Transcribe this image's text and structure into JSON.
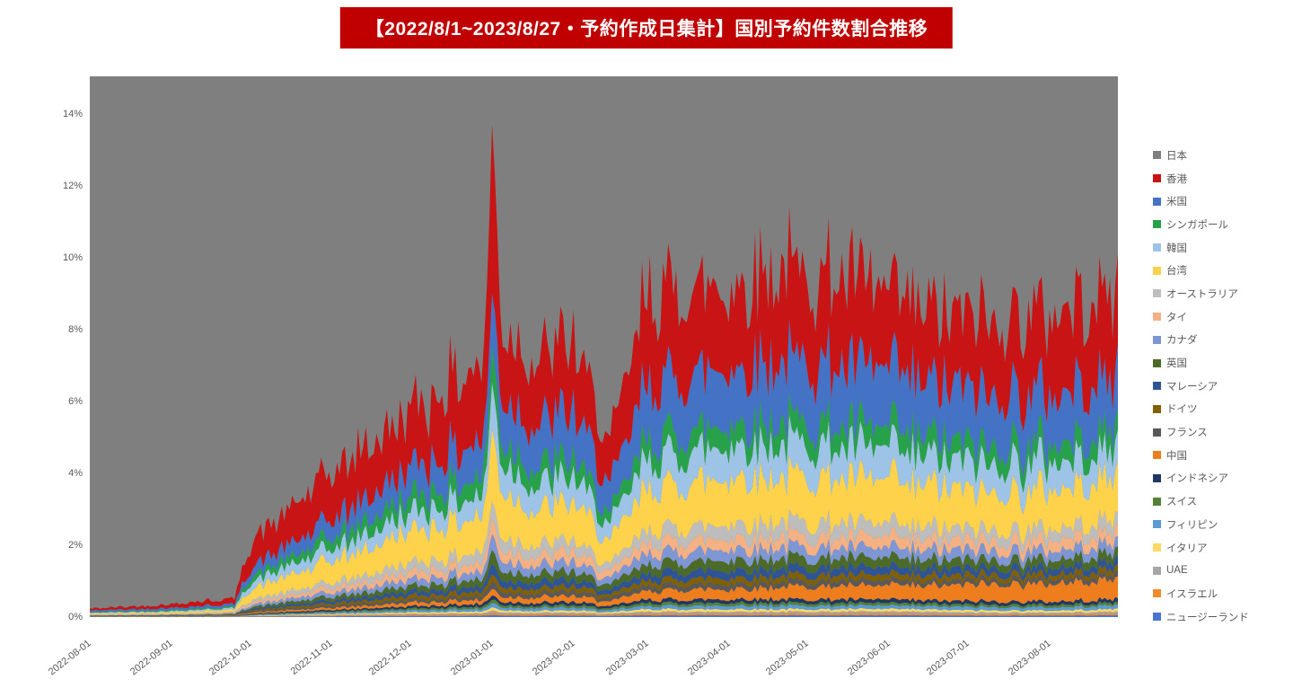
{
  "title": "【2022/8/1~2023/8/27・予約作成日集計】国別予約件数割合推移",
  "banner_color": "#c00000",
  "chart_data": {
    "type": "area",
    "stacked": true,
    "unit": "percent_share",
    "title": "【2022/8/1~2023/8/27・予約作成日集計】国別予約件数割合推移",
    "xlabel": "",
    "ylabel": "",
    "grid": false,
    "legend_position": "right",
    "x_range": [
      "2022-08-01",
      "2023-08-27"
    ],
    "ylim_percent": [
      0,
      15.05
    ],
    "y_tick_labels": [
      "0%",
      "2%",
      "4%",
      "6%",
      "8%",
      "10%",
      "12%",
      "14%"
    ],
    "y_tick_values": [
      0,
      2,
      4,
      6,
      8,
      10,
      12,
      14
    ],
    "x_ticks": [
      {
        "label": "2022-08-01",
        "day": 0
      },
      {
        "label": "2022-09-01",
        "day": 31
      },
      {
        "label": "2022-10-01",
        "day": 61
      },
      {
        "label": "2022-11-01",
        "day": 92
      },
      {
        "label": "2022-12-01",
        "day": 122
      },
      {
        "label": "2023-01-01",
        "day": 153
      },
      {
        "label": "2023-02-01",
        "day": 184
      },
      {
        "label": "2023-03-01",
        "day": 212
      },
      {
        "label": "2023-04-01",
        "day": 243
      },
      {
        "label": "2023-05-01",
        "day": 273
      },
      {
        "label": "2023-06-01",
        "day": 304
      },
      {
        "label": "2023-07-01",
        "day": 334
      },
      {
        "label": "2023-08-01",
        "day": 365
      }
    ],
    "total_days": 391,
    "background_series_note": "日本 is the remainder share and fills the whole plot background (gray) above the stacked foreign-country areas; y-axis is clipped at ~15%",
    "sample_days": [
      0,
      31,
      55,
      61,
      92,
      122,
      150,
      153,
      157,
      170,
      184,
      198,
      212,
      243,
      273,
      304,
      334,
      365,
      391
    ],
    "series": [
      {
        "name": "日本",
        "color": "#7f7f7f",
        "background": true,
        "values": null
      },
      {
        "name": "香港",
        "color": "#c81414",
        "values": [
          0.05,
          0.1,
          0.15,
          0.7,
          1.3,
          1.6,
          2.2,
          4.5,
          2.0,
          1.8,
          1.9,
          1.1,
          2.5,
          2.3,
          2.6,
          2.2,
          2.0,
          2.2,
          2.4
        ]
      },
      {
        "name": "米国",
        "color": "#4472c4",
        "values": [
          0.04,
          0.06,
          0.08,
          0.25,
          0.5,
          0.8,
          1.0,
          1.5,
          1.2,
          1.2,
          1.3,
          0.8,
          1.5,
          1.6,
          1.7,
          1.6,
          1.5,
          1.4,
          1.5
        ]
      },
      {
        "name": "シンガポール",
        "color": "#28a24a",
        "values": [
          0.02,
          0.03,
          0.04,
          0.15,
          0.3,
          0.45,
          0.5,
          1.0,
          0.6,
          0.5,
          0.5,
          0.3,
          0.55,
          0.6,
          0.6,
          0.55,
          0.5,
          0.5,
          0.55
        ]
      },
      {
        "name": "韓国",
        "color": "#9dc3e6",
        "values": [
          0.02,
          0.03,
          0.05,
          0.2,
          0.35,
          0.5,
          0.6,
          1.2,
          0.8,
          0.7,
          0.7,
          0.45,
          0.8,
          0.9,
          0.9,
          0.85,
          0.8,
          0.75,
          0.8
        ]
      },
      {
        "name": "台湾",
        "color": "#ffd24c",
        "values": [
          0.03,
          0.04,
          0.06,
          0.3,
          0.6,
          0.9,
          1.0,
          2.0,
          1.2,
          1.0,
          1.1,
          0.65,
          1.2,
          1.3,
          1.3,
          1.2,
          1.1,
          1.1,
          1.2
        ]
      },
      {
        "name": "オーストラリア",
        "color": "#bdbdbd",
        "values": [
          0.01,
          0.015,
          0.02,
          0.08,
          0.15,
          0.25,
          0.3,
          0.5,
          0.35,
          0.3,
          0.3,
          0.2,
          0.35,
          0.4,
          0.4,
          0.35,
          0.3,
          0.3,
          0.35
        ]
      },
      {
        "name": "タイ",
        "color": "#f4b183",
        "values": [
          0.01,
          0.015,
          0.02,
          0.06,
          0.12,
          0.2,
          0.25,
          0.4,
          0.3,
          0.25,
          0.28,
          0.18,
          0.3,
          0.32,
          0.3,
          0.3,
          0.28,
          0.3,
          0.3
        ]
      },
      {
        "name": "カナダ",
        "color": "#7e96d4",
        "values": [
          0.01,
          0.01,
          0.02,
          0.06,
          0.12,
          0.18,
          0.22,
          0.4,
          0.28,
          0.25,
          0.26,
          0.17,
          0.3,
          0.3,
          0.3,
          0.28,
          0.26,
          0.25,
          0.28
        ]
      },
      {
        "name": "英国",
        "color": "#4d6b28",
        "values": [
          0.005,
          0.01,
          0.015,
          0.05,
          0.1,
          0.15,
          0.2,
          0.35,
          0.25,
          0.22,
          0.22,
          0.15,
          0.25,
          0.28,
          0.27,
          0.25,
          0.23,
          0.22,
          0.25
        ]
      },
      {
        "name": "マレーシア",
        "color": "#2f5496",
        "values": [
          0.005,
          0.008,
          0.01,
          0.04,
          0.08,
          0.12,
          0.15,
          0.3,
          0.2,
          0.18,
          0.18,
          0.12,
          0.2,
          0.22,
          0.22,
          0.2,
          0.18,
          0.18,
          0.2
        ]
      },
      {
        "name": "ドイツ",
        "color": "#806000",
        "values": [
          0.004,
          0.006,
          0.01,
          0.03,
          0.06,
          0.1,
          0.12,
          0.2,
          0.15,
          0.13,
          0.14,
          0.09,
          0.15,
          0.16,
          0.16,
          0.15,
          0.14,
          0.13,
          0.15
        ]
      },
      {
        "name": "フランス",
        "color": "#595959",
        "values": [
          0.004,
          0.006,
          0.008,
          0.03,
          0.06,
          0.09,
          0.11,
          0.2,
          0.14,
          0.12,
          0.13,
          0.09,
          0.14,
          0.15,
          0.15,
          0.14,
          0.13,
          0.13,
          0.14
        ]
      },
      {
        "name": "中国",
        "color": "#ee7d1e",
        "values": [
          0.005,
          0.008,
          0.01,
          0.03,
          0.06,
          0.1,
          0.12,
          0.2,
          0.15,
          0.15,
          0.18,
          0.12,
          0.25,
          0.3,
          0.35,
          0.4,
          0.45,
          0.5,
          0.55
        ]
      },
      {
        "name": "インドネシア",
        "color": "#203864",
        "values": [
          0.003,
          0.004,
          0.006,
          0.02,
          0.04,
          0.06,
          0.08,
          0.12,
          0.09,
          0.08,
          0.09,
          0.06,
          0.1,
          0.1,
          0.1,
          0.1,
          0.09,
          0.09,
          0.1
        ]
      },
      {
        "name": "スイス",
        "color": "#538135",
        "values": [
          0.002,
          0.003,
          0.005,
          0.015,
          0.03,
          0.05,
          0.06,
          0.1,
          0.07,
          0.06,
          0.07,
          0.05,
          0.08,
          0.08,
          0.08,
          0.07,
          0.07,
          0.07,
          0.07
        ]
      },
      {
        "name": "フィリピン",
        "color": "#5b9bd5",
        "values": [
          0.003,
          0.004,
          0.006,
          0.02,
          0.04,
          0.06,
          0.07,
          0.12,
          0.08,
          0.08,
          0.08,
          0.06,
          0.09,
          0.1,
          0.1,
          0.09,
          0.09,
          0.09,
          0.1
        ]
      },
      {
        "name": "イタリア",
        "color": "#ffd966",
        "values": [
          0.002,
          0.003,
          0.004,
          0.012,
          0.025,
          0.04,
          0.05,
          0.09,
          0.06,
          0.05,
          0.06,
          0.04,
          0.07,
          0.07,
          0.07,
          0.07,
          0.06,
          0.06,
          0.07
        ]
      },
      {
        "name": "UAE",
        "color": "#a6a6a6",
        "values": [
          0.002,
          0.002,
          0.003,
          0.01,
          0.02,
          0.03,
          0.04,
          0.06,
          0.05,
          0.04,
          0.04,
          0.03,
          0.05,
          0.05,
          0.05,
          0.05,
          0.05,
          0.04,
          0.05
        ]
      },
      {
        "name": "イスラエル",
        "color": "#f08c2e",
        "values": [
          0.002,
          0.002,
          0.003,
          0.01,
          0.02,
          0.03,
          0.035,
          0.06,
          0.04,
          0.04,
          0.04,
          0.03,
          0.05,
          0.05,
          0.05,
          0.05,
          0.04,
          0.04,
          0.05
        ]
      },
      {
        "name": "ニュージーランド",
        "color": "#4775d1",
        "values": [
          0.002,
          0.002,
          0.003,
          0.01,
          0.02,
          0.03,
          0.035,
          0.06,
          0.04,
          0.04,
          0.04,
          0.03,
          0.05,
          0.05,
          0.05,
          0.05,
          0.04,
          0.04,
          0.05
        ]
      }
    ]
  }
}
